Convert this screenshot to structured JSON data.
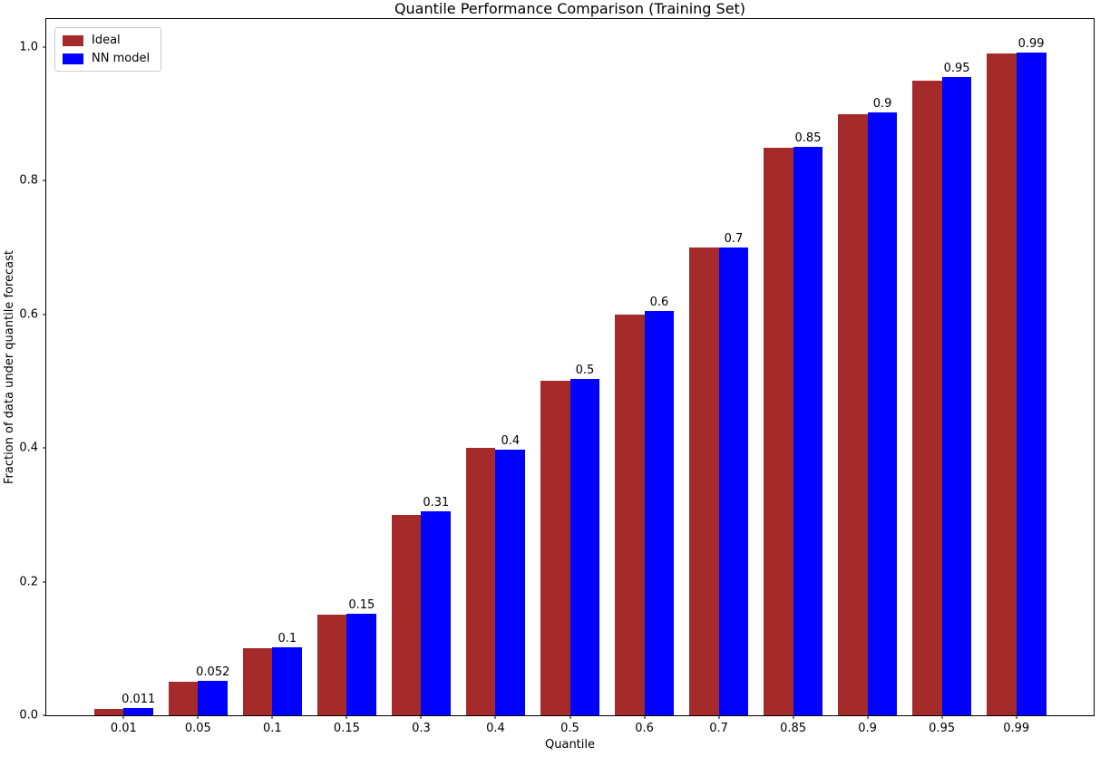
{
  "chart_data": {
    "type": "bar",
    "title": "Quantile Performance Comparison (Training Set)",
    "xlabel": "Quantile",
    "ylabel": "Fraction of data under quantile forecast",
    "categories": [
      "0.01",
      "0.05",
      "0.1",
      "0.15",
      "0.3",
      "0.4",
      "0.5",
      "0.6",
      "0.7",
      "0.85",
      "0.9",
      "0.95",
      "0.99"
    ],
    "series": [
      {
        "name": "Ideal",
        "color": "#A52A2A",
        "values": [
          0.01,
          0.05,
          0.1,
          0.15,
          0.3,
          0.4,
          0.5,
          0.6,
          0.7,
          0.85,
          0.9,
          0.95,
          0.99
        ]
      },
      {
        "name": "NN model",
        "color": "#0000FF",
        "values": [
          0.011,
          0.052,
          0.102,
          0.152,
          0.305,
          0.398,
          0.503,
          0.605,
          0.7,
          0.851,
          0.902,
          0.955,
          0.992
        ]
      }
    ],
    "bar_labels": [
      "0.011",
      "0.052",
      "0.1",
      "0.15",
      "0.31",
      "0.4",
      "0.5",
      "0.6",
      "0.7",
      "0.85",
      "0.9",
      "0.95",
      "0.99"
    ],
    "yticks": [
      "0.0",
      "0.2",
      "0.4",
      "0.6",
      "0.8",
      "1.0"
    ],
    "ylim": [
      0,
      1.042
    ],
    "grid": false,
    "legend_position": "upper left"
  }
}
